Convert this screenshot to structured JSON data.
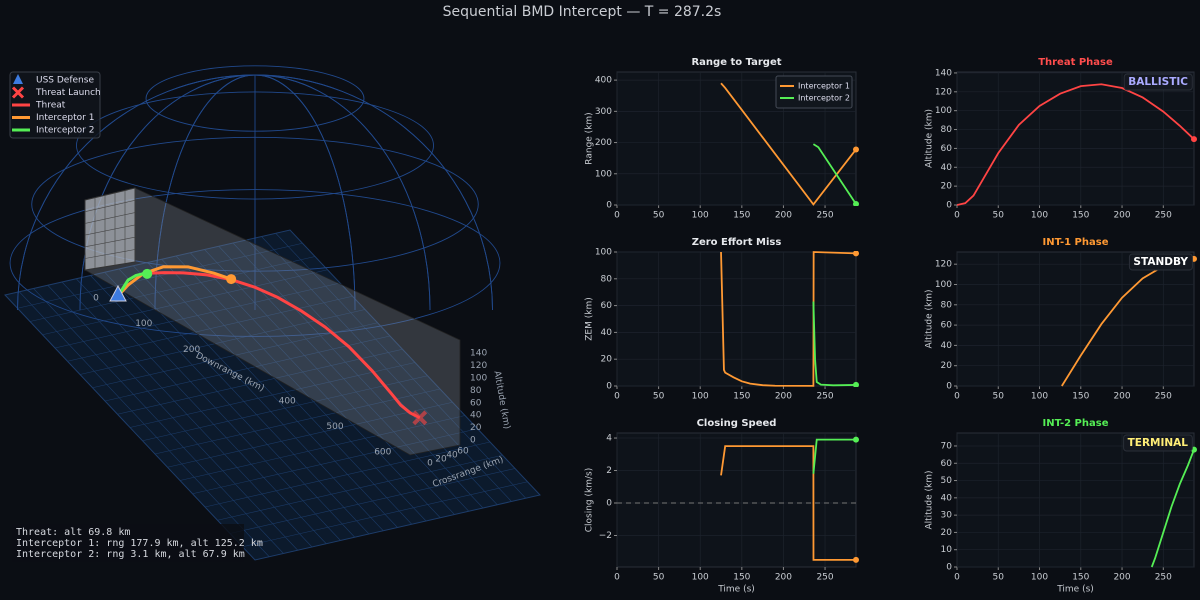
{
  "title": "Sequential BMD Intercept — T = 287.2s",
  "chart_data": [
    {
      "type": "line3d",
      "xlabel": "Downrange (km)",
      "ylabel": "Crossrange (km)",
      "zlabel": "Altitude (km)",
      "xticks": [
        0,
        100,
        200,
        400,
        500,
        600
      ],
      "yticks": [
        0,
        20,
        40,
        60
      ],
      "zticks": [
        0,
        20,
        40,
        60,
        80,
        100,
        120,
        140
      ],
      "markers": [
        {
          "name": "USS Defense",
          "color": "#3d7be0"
        },
        {
          "name": "Threat Launch",
          "color": "#ff4444"
        }
      ],
      "series": [
        {
          "name": "Threat",
          "color": "#ff4444",
          "x": [
            600,
            581,
            562,
            544,
            506,
            459,
            412,
            365,
            318,
            271,
            224,
            177,
            130,
            92,
            60
          ],
          "values": [
            0,
            2,
            10,
            25,
            55,
            85,
            105,
            118,
            126,
            128,
            124,
            114,
            99,
            84,
            69.8
          ]
        },
        {
          "name": "Interceptor 1",
          "color": "#ff9933",
          "x": [
            0,
            20,
            50,
            90,
            140,
            190,
            225
          ],
          "values": [
            0,
            30,
            65,
            95,
            115,
            123,
            125.2
          ]
        },
        {
          "name": "Interceptor 2",
          "color": "#55ee55",
          "x": [
            0,
            10,
            20,
            35,
            50,
            58
          ],
          "values": [
            0,
            20,
            40,
            55,
            65,
            67.9
          ]
        }
      ],
      "status": [
        "Threat: alt 69.8 km",
        "Interceptor 1: rng 177.9 km, alt 125.2 km",
        "Interceptor 2: rng 3.1 km, alt 67.9 km"
      ]
    },
    {
      "type": "line",
      "title": "Range to Target",
      "ylabel": "Range (km)",
      "xlim": [
        0,
        287.2
      ],
      "ylim": [
        0,
        426
      ],
      "xticks": [
        0,
        50,
        100,
        150,
        200,
        250
      ],
      "yticks": [
        0,
        100,
        200,
        300,
        400
      ],
      "grid": true,
      "legend": "upper right",
      "series": [
        {
          "name": "Interceptor 1",
          "color": "#ff9933",
          "x": [
            125,
            130,
            236,
            287.2
          ],
          "values": [
            390,
            375,
            2,
            177.9
          ]
        },
        {
          "name": "Interceptor 2",
          "color": "#55ee55",
          "x": [
            236,
            242,
            287.2
          ],
          "values": [
            195,
            185,
            3.1
          ]
        }
      ]
    },
    {
      "type": "line",
      "title": "Zero Effort Miss",
      "ylabel": "ZEM (km)",
      "xlim": [
        0,
        287.2
      ],
      "ylim": [
        0,
        100
      ],
      "xticks": [
        0,
        50,
        100,
        150,
        200,
        250
      ],
      "yticks": [
        0,
        20,
        40,
        60,
        80,
        100
      ],
      "grid": true,
      "series": [
        {
          "name": "Interceptor 1",
          "color": "#ff9933",
          "x": [
            125,
            128.5,
            130,
            140,
            150,
            160,
            175,
            190,
            236,
            236.3,
            287.2
          ],
          "values": [
            100,
            12,
            10,
            6.5,
            3.5,
            1.8,
            0.6,
            0.2,
            0.1,
            100,
            99
          ]
        },
        {
          "name": "Interceptor 2",
          "color": "#55ee55",
          "x": [
            236,
            238,
            240,
            245,
            260,
            287.2
          ],
          "values": [
            63,
            20,
            3,
            1,
            0.5,
            0.8
          ]
        }
      ]
    },
    {
      "type": "line",
      "title": "Closing Speed",
      "xlabel": "Time (s)",
      "ylabel": "Closing (km/s)",
      "xlim": [
        0,
        287.2
      ],
      "ylim": [
        -3.94,
        4.31
      ],
      "xticks": [
        0,
        50,
        100,
        150,
        200,
        250
      ],
      "yticks": [
        {
          "value": -2,
          "label": "−2"
        },
        0,
        2,
        4
      ],
      "grid": true,
      "zero_line": true,
      "series": [
        {
          "name": "Interceptor 1",
          "color": "#ff9933",
          "x": [
            125,
            130,
            236,
            236.1,
            287.2
          ],
          "values": [
            1.7,
            3.5,
            3.5,
            -3.5,
            -3.5
          ]
        },
        {
          "name": "Interceptor 2",
          "color": "#55ee55",
          "x": [
            236,
            240,
            287.2
          ],
          "values": [
            1.8,
            3.9,
            3.9
          ]
        }
      ]
    },
    {
      "type": "line",
      "title": "Threat Phase",
      "title_color": "#ff4d4d",
      "ylabel": "Altitude (km)",
      "xlim": [
        0,
        287.2
      ],
      "ylim": [
        0,
        141
      ],
      "xticks": [
        0,
        50,
        100,
        150,
        200,
        250
      ],
      "yticks": [
        0,
        20,
        40,
        60,
        80,
        100,
        120,
        140
      ],
      "grid": true,
      "phase_label": "BALLISTIC",
      "phase_color": "#aaaaff",
      "series": [
        {
          "name": "Threat",
          "color": "#ff4444",
          "x": [
            0,
            10,
            20,
            30,
            50,
            75,
            100,
            125,
            150,
            175,
            200,
            225,
            250,
            270,
            287.2
          ],
          "values": [
            0,
            2,
            10,
            25,
            55,
            85,
            105,
            118,
            126,
            128,
            124,
            114,
            99,
            84,
            69.8
          ]
        }
      ]
    },
    {
      "type": "line",
      "title": "INT-1 Phase",
      "title_color": "#ff9933",
      "ylabel": "Altitude (km)",
      "xlim": [
        0,
        287.2
      ],
      "ylim": [
        0,
        132
      ],
      "xticks": [
        0,
        50,
        100,
        150,
        200,
        250
      ],
      "yticks": [
        0,
        20,
        40,
        60,
        80,
        100,
        120
      ],
      "grid": true,
      "phase_label": "STANDBY",
      "phase_color": "#ffffff",
      "series": [
        {
          "name": "Interceptor 1",
          "color": "#ff9933",
          "x": [
            127,
            150,
            175,
            200,
            225,
            250,
            270,
            287.2
          ],
          "values": [
            0,
            30,
            61,
            87,
            106,
            118,
            123,
            125.2
          ]
        }
      ]
    },
    {
      "type": "line",
      "title": "INT-2 Phase",
      "title_color": "#55ee55",
      "xlabel": "Time (s)",
      "ylabel": "Altitude (km)",
      "xlim": [
        0,
        287.2
      ],
      "ylim": [
        0,
        77.5
      ],
      "xticks": [
        0,
        50,
        100,
        150,
        200,
        250
      ],
      "yticks": [
        0,
        10,
        20,
        30,
        40,
        50,
        60,
        70
      ],
      "grid": true,
      "phase_label": "TERMINAL",
      "phase_color": "#ffee77",
      "series": [
        {
          "name": "Interceptor 2",
          "color": "#55ee55",
          "x": [
            236,
            240,
            250,
            260,
            270,
            280,
            287.2
          ],
          "values": [
            0,
            5,
            20,
            35,
            48,
            59,
            67.9
          ]
        }
      ]
    }
  ]
}
